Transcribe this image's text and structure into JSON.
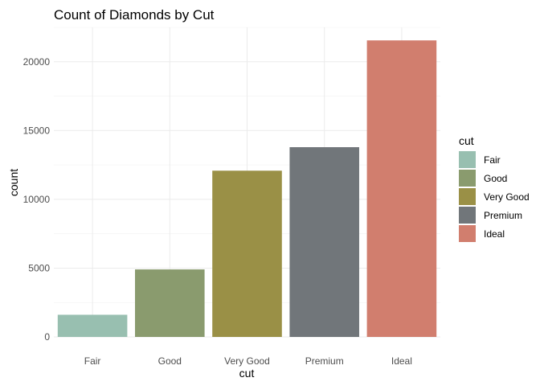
{
  "chart_data": {
    "type": "bar",
    "title": "Count of Diamonds by Cut",
    "xlabel": "cut",
    "ylabel": "count",
    "categories": [
      "Fair",
      "Good",
      "Very Good",
      "Premium",
      "Ideal"
    ],
    "values": [
      1610,
      4906,
      12082,
      13791,
      21551
    ],
    "ylim": [
      0,
      22500
    ],
    "yticks": [
      0,
      5000,
      10000,
      15000,
      20000
    ],
    "ytick_labels": [
      "0",
      "5000",
      "10000",
      "15000",
      "20000"
    ],
    "grid": true,
    "legend": {
      "title": "cut",
      "placement": "right",
      "items": [
        "Fair",
        "Good",
        "Very Good",
        "Premium",
        "Ideal"
      ]
    },
    "colors": [
      "#98bfb0",
      "#8a9b6e",
      "#9a9046",
      "#71767a",
      "#d17e6e"
    ]
  }
}
